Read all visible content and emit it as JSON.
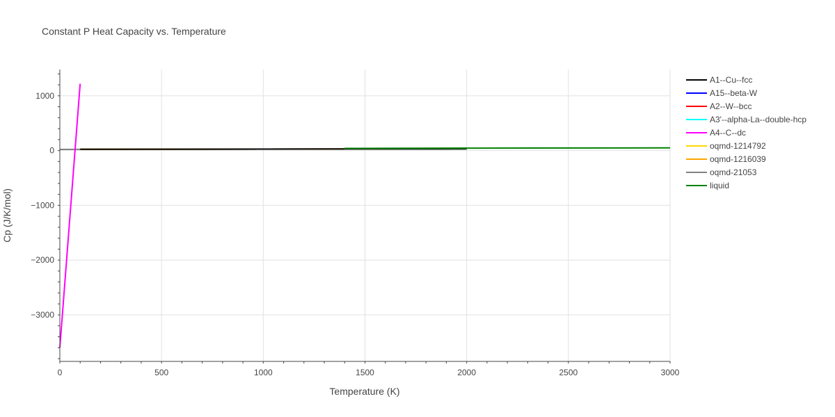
{
  "chart_data": {
    "type": "line",
    "title": "Constant P Heat Capacity vs. Temperature",
    "xlabel": "Temperature (K)",
    "ylabel": "Cp (J/K/mol)",
    "xlim": [
      0,
      3000
    ],
    "ylim": [
      -3850,
      1480
    ],
    "xticks": [
      0,
      500,
      1000,
      1500,
      2000,
      2500,
      3000
    ],
    "xtick_labels": [
      "0",
      "500",
      "1000",
      "1500",
      "2000",
      "2500",
      "3000"
    ],
    "yticks": [
      -3000,
      -2000,
      -1000,
      0,
      1000
    ],
    "ytick_labels": [
      "−3000",
      "−2000",
      "−1000",
      "0",
      "1000"
    ],
    "grid": true,
    "legend_position": "right",
    "series": [
      {
        "name": "A1--Cu--fcc",
        "color": "#000000",
        "x": [
          100,
          1400
        ],
        "y": [
          24,
          28
        ]
      },
      {
        "name": "A15--beta-W",
        "color": "#0000ff",
        "x": [
          100,
          1400
        ],
        "y": [
          25,
          28
        ]
      },
      {
        "name": "A2--W--bcc",
        "color": "#ff0000",
        "x": [
          100,
          1400
        ],
        "y": [
          25,
          28
        ]
      },
      {
        "name": "A3'--alpha-La--double-hcp",
        "color": "#00ffff",
        "x": [
          100,
          1400
        ],
        "y": [
          24,
          28
        ]
      },
      {
        "name": "A4--C--dc",
        "color": "#ff00ff",
        "x": [
          0,
          100
        ],
        "y": [
          -3600,
          1220
        ]
      },
      {
        "name": "oqmd-1214792",
        "color": "#ffd700",
        "x": [
          100,
          1400
        ],
        "y": [
          24,
          28
        ]
      },
      {
        "name": "oqmd-1216039",
        "color": "#ffa500",
        "x": [
          100,
          1400
        ],
        "y": [
          24,
          28
        ]
      },
      {
        "name": "oqmd-21053",
        "color": "#808080",
        "x": [
          0,
          100
        ],
        "y": [
          20,
          22
        ]
      },
      {
        "name": "liquid",
        "color": "#008000",
        "x": [
          1400,
          3000
        ],
        "y": [
          40,
          50
        ]
      }
    ],
    "extra_segments": [
      {
        "color": "#000000",
        "x": [
          100,
          2000
        ],
        "y": [
          24,
          30
        ]
      },
      {
        "color": "#008000",
        "x": [
          1400,
          2000
        ],
        "y": [
          40,
          42
        ]
      }
    ]
  }
}
